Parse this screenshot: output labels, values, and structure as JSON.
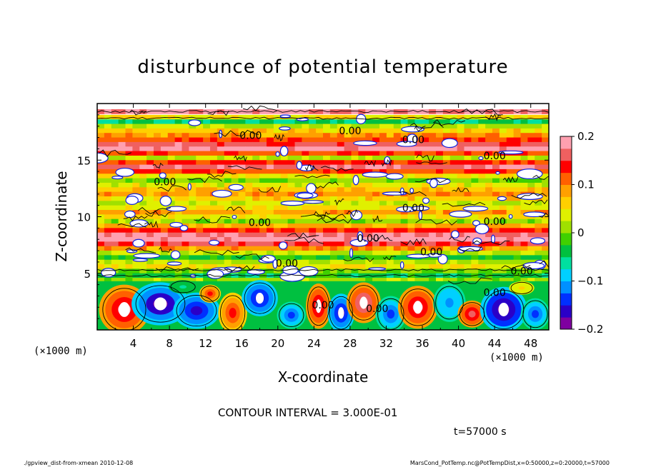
{
  "chart_data": {
    "type": "heatmap",
    "title": "disturbunce of potential temperature",
    "xlabel": "X-coordinate",
    "ylabel": "Z-coordinate",
    "x_unit_left": "(×1000 m)",
    "x_unit_right": "(×1000 m)",
    "xlim": [
      0,
      50
    ],
    "ylim": [
      0,
      20
    ],
    "x_ticks": [
      "4",
      "8",
      "12",
      "16",
      "20",
      "24",
      "28",
      "32",
      "36",
      "40",
      "44",
      "48"
    ],
    "y_ticks": [
      "5",
      "10",
      "15"
    ],
    "colorbar": {
      "vmin": -0.2,
      "vmax": 0.2,
      "tick_labels": [
        "0.2",
        "0.1",
        "0",
        "−0.1",
        "−0.2"
      ],
      "colors": [
        "#7f00a0",
        "#2a00c8",
        "#0030ff",
        "#0090ff",
        "#00d0ff",
        "#00e0a0",
        "#00c040",
        "#40d000",
        "#a0e000",
        "#e0f000",
        "#ffd000",
        "#ffa000",
        "#ff6000",
        "#ff0000",
        "#f06060",
        "#ffa0b0"
      ]
    },
    "contour_label": "0.00",
    "contour_interval_text": "CONTOUR INTERVAL = 3.000E-01",
    "time_text": "t=57000 s"
  },
  "footer": {
    "left": "./gpview_dist-from-xmean  2010-12-08",
    "right": "MarsCond_PotTemp.nc@PotTempDist,x=0:50000,z=0:20000,t=57000"
  }
}
